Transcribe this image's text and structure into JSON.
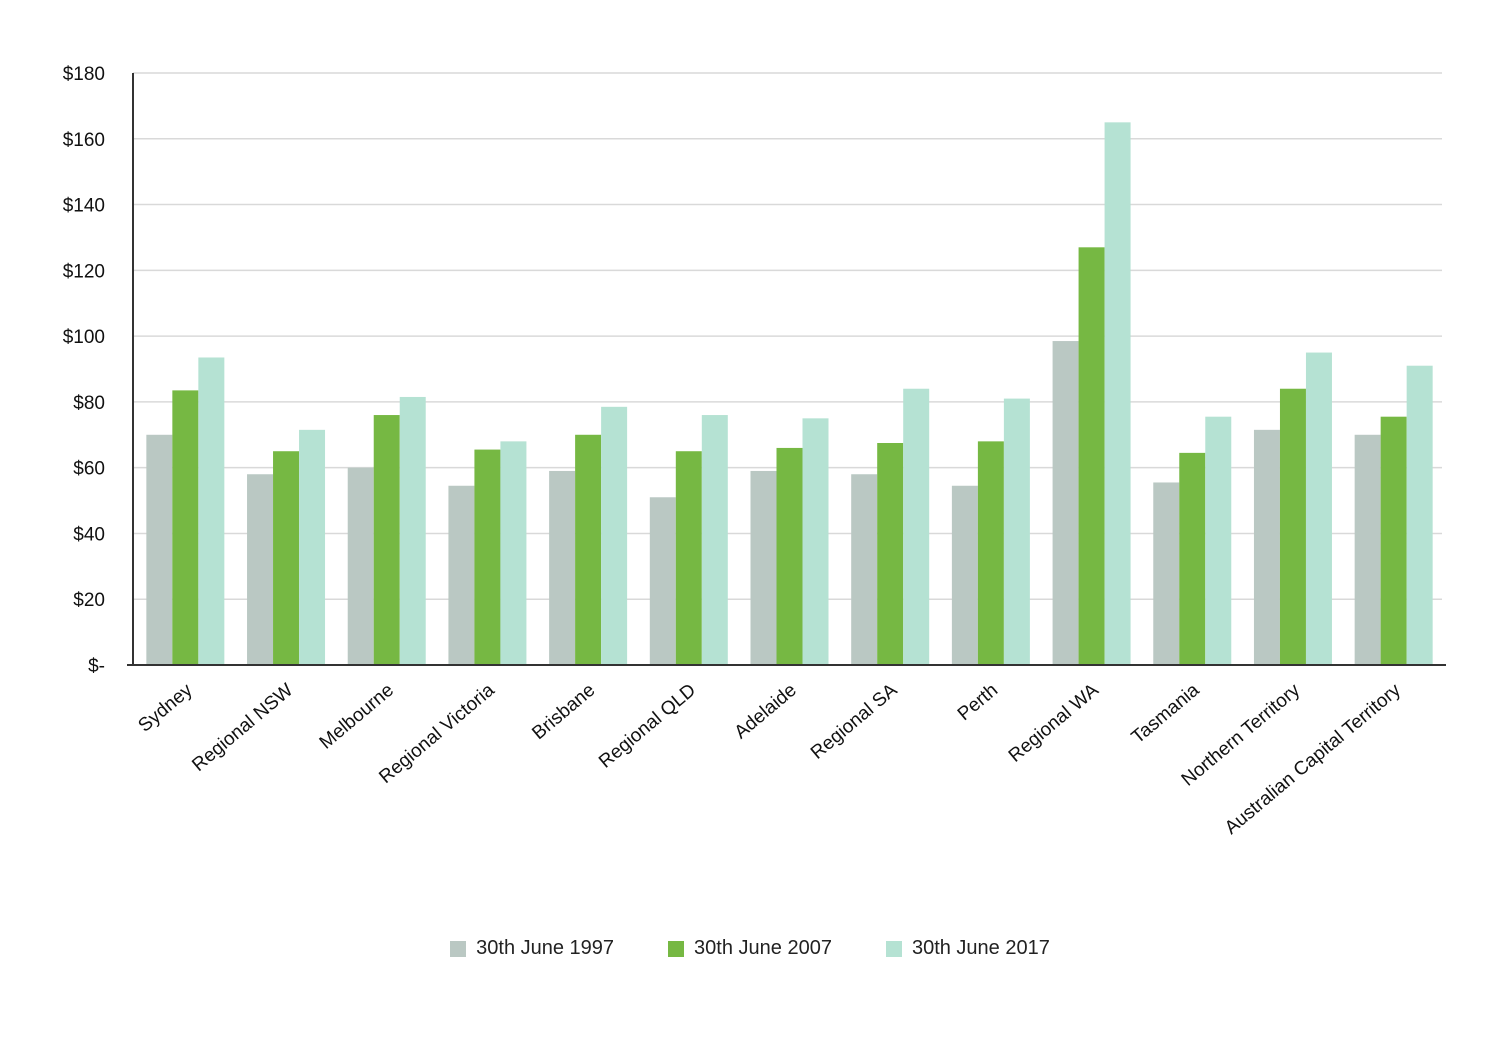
{
  "chart_data": {
    "type": "bar",
    "title": "",
    "xlabel": "",
    "ylabel": "",
    "ylim": [
      0,
      180
    ],
    "yticks": [
      0,
      20,
      40,
      60,
      80,
      100,
      120,
      140,
      160,
      180
    ],
    "ytick_labels": [
      "$-",
      "$20",
      "$40",
      "$60",
      "$80",
      "$100",
      "$120",
      "$140",
      "$160",
      "$180"
    ],
    "grid": true,
    "legend_position": "bottom",
    "categories": [
      "Sydney",
      "Regional NSW",
      "Melbourne",
      "Regional Victoria",
      "Brisbane",
      "Regional QLD",
      "Adelaide",
      "Regional SA",
      "Perth",
      "Regional WA",
      "Tasmania",
      "Northern Territory",
      "Australian Capital Territory"
    ],
    "series": [
      {
        "name": "30th June 1997",
        "color": "#bac8c3",
        "values": [
          70,
          58,
          60,
          54.5,
          59,
          51,
          59,
          58,
          54.5,
          98.5,
          55.5,
          71.5,
          70
        ]
      },
      {
        "name": "30th June 2007",
        "color": "#76b843",
        "values": [
          83.5,
          65,
          76,
          65.5,
          70,
          65,
          66,
          67.5,
          68,
          127,
          64.5,
          84,
          75.5
        ]
      },
      {
        "name": "30th June 2017",
        "color": "#b5e2d3",
        "values": [
          93.5,
          71.5,
          81.5,
          68,
          78.5,
          76,
          75,
          84,
          81,
          165,
          75.5,
          95,
          91
        ]
      }
    ]
  }
}
